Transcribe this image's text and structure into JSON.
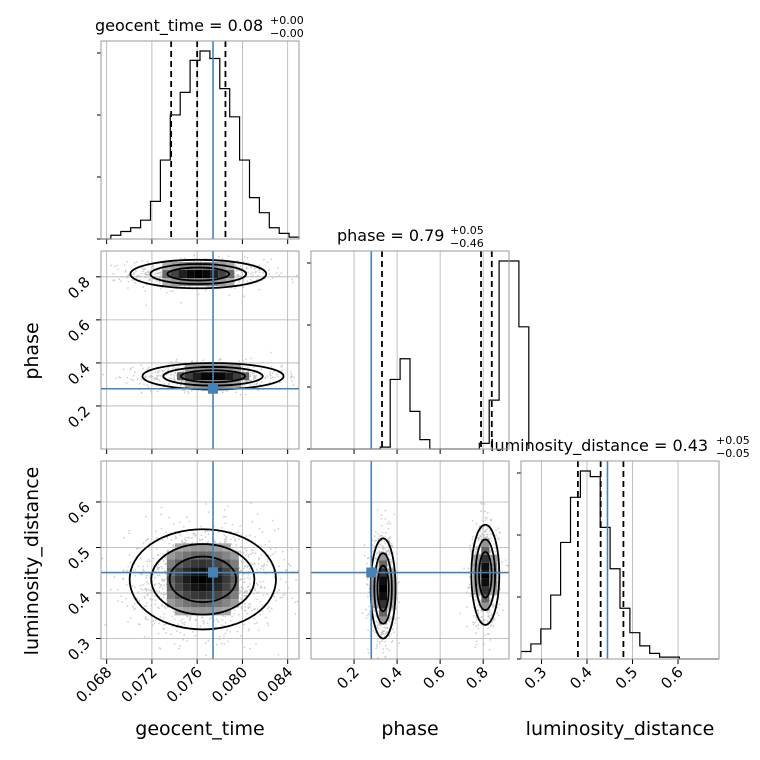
{
  "chart_data": {
    "type": "corner",
    "parameters": [
      "geocent_time",
      "phase",
      "luminosity_distance"
    ],
    "truths": {
      "geocent_time": 0.0774,
      "phase": 0.28,
      "luminosity_distance": 0.445
    },
    "titles": [
      {
        "param": "geocent_time",
        "main": "geocent_time = 0.08",
        "sup": "+0.00",
        "sub": "−0.00"
      },
      {
        "param": "phase",
        "main": "phase = 0.79",
        "sup": "+0.05",
        "sub": "−0.46"
      },
      {
        "param": "luminosity_distance",
        "main": "luminosity_distance = 0.43",
        "sup": "+0.05",
        "sub": "−0.05"
      }
    ],
    "axis_labels": {
      "geocent_time": "geocent_time",
      "phase": "phase",
      "luminosity_distance": "luminosity_distance"
    },
    "ranges": {
      "geocent_time": [
        0.0675,
        0.085
      ],
      "phase": [
        0.0,
        0.92
      ],
      "luminosity_distance": [
        0.255,
        0.69
      ]
    },
    "ticks": {
      "geocent_time": [
        "0.068",
        "0.072",
        "0.076",
        "0.080",
        "0.084"
      ],
      "phase": [
        "0.2",
        "0.4",
        "0.6",
        "0.8"
      ],
      "luminosity_distance": [
        "0.3",
        "0.4",
        "0.5",
        "0.6"
      ]
    },
    "quantiles": {
      "geocent_time": [
        0.0737,
        0.076,
        0.0785
      ],
      "phase": [
        0.33,
        0.79,
        0.84
      ],
      "luminosity_distance": [
        0.38,
        0.43,
        0.48
      ]
    },
    "histograms": {
      "geocent_time": {
        "edges_start": 0.0675,
        "bin_width": 0.000875,
        "counts": [
          0,
          2,
          4,
          6,
          10,
          20,
          42,
          66,
          78,
          95,
          100,
          96,
          80,
          65,
          42,
          22,
          14,
          6,
          3,
          1
        ]
      },
      "phase": {
        "edges_start": 0.0,
        "bin_width": 0.046,
        "counts": [
          0,
          0,
          0,
          0,
          0,
          0,
          0,
          1,
          37,
          48,
          20,
          5,
          0,
          0,
          0,
          0,
          0,
          3,
          26,
          100,
          100,
          65
        ]
      },
      "luminosity_distance": {
        "edges_start": 0.255,
        "bin_width": 0.02175,
        "counts": [
          4,
          8,
          16,
          34,
          62,
          86,
          100,
          97,
          70,
          48,
          27,
          14,
          7,
          3,
          1,
          1,
          0,
          0,
          0,
          0
        ]
      }
    },
    "modes_2d": {
      "geocent_time_vs_phase": [
        {
          "center": [
            0.0761,
            0.813
          ],
          "spread": [
            0.0026,
            0.03
          ],
          "weight": 0.5
        },
        {
          "center": [
            0.0774,
            0.338
          ],
          "spread": [
            0.0027,
            0.028
          ],
          "weight": 0.5
        }
      ],
      "geocent_time_vs_luminosity_distance": [
        {
          "center": [
            0.0765,
            0.43
          ],
          "spread": [
            0.0028,
            0.05
          ],
          "weight": 1.0
        }
      ],
      "phase_vs_luminosity_distance": [
        {
          "center": [
            0.335,
            0.41
          ],
          "spread": [
            0.025,
            0.05
          ],
          "weight": 0.5
        },
        {
          "center": [
            0.81,
            0.44
          ],
          "spread": [
            0.028,
            0.05
          ],
          "weight": 0.5
        }
      ]
    },
    "grid": true,
    "colors": {
      "truth": "#4682b4",
      "line": "#000000",
      "points": "#bdbdbd"
    }
  }
}
